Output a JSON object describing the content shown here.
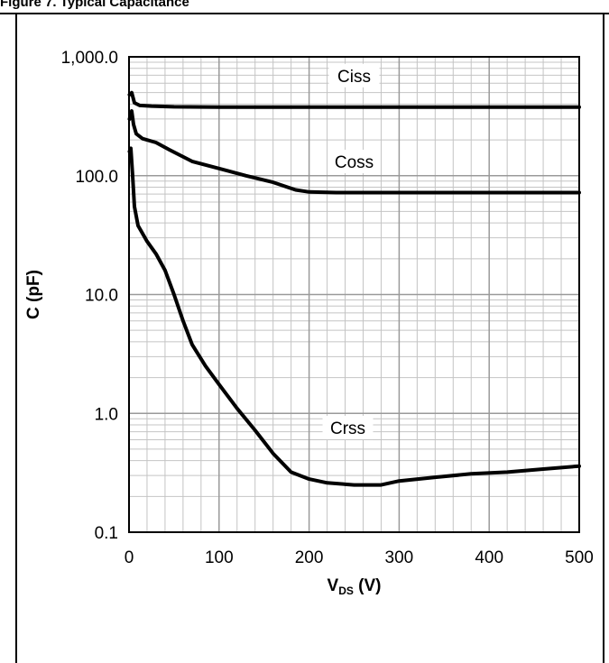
{
  "caption": "Figure 7. Typical Capacitance",
  "chart_data": {
    "type": "line",
    "xlabel": "V",
    "xlabel_sub": "DS",
    "xlabel_suffix": " (V)",
    "ylabel": "C (pF)",
    "xlim": [
      0,
      500
    ],
    "ylim": [
      0.1,
      1000
    ],
    "yscale": "log",
    "grid": true,
    "x_ticks": [
      "0",
      "100",
      "200",
      "300",
      "400",
      "500"
    ],
    "y_ticks": [
      "0.1",
      "1.0",
      "10.0",
      "100.0",
      "1,000.0"
    ],
    "series": [
      {
        "name": "Ciss",
        "label_at": [
          250,
          660
        ],
        "points": [
          [
            0.5,
            480
          ],
          [
            3,
            500
          ],
          [
            6,
            410
          ],
          [
            12,
            390
          ],
          [
            25,
            385
          ],
          [
            50,
            380
          ],
          [
            100,
            378
          ],
          [
            200,
            378
          ],
          [
            300,
            378
          ],
          [
            400,
            378
          ],
          [
            500,
            378
          ]
        ]
      },
      {
        "name": "Coss",
        "label_at": [
          250,
          125
        ],
        "points": [
          [
            0.5,
            300
          ],
          [
            3,
            350
          ],
          [
            5,
            270
          ],
          [
            8,
            225
          ],
          [
            15,
            205
          ],
          [
            30,
            190
          ],
          [
            45,
            165
          ],
          [
            70,
            132
          ],
          [
            100,
            115
          ],
          [
            130,
            100
          ],
          [
            160,
            88
          ],
          [
            185,
            76
          ],
          [
            200,
            73
          ],
          [
            230,
            72
          ],
          [
            300,
            72
          ],
          [
            400,
            72
          ],
          [
            500,
            72
          ]
        ]
      },
      {
        "name": "Crss",
        "label_at": [
          243,
          0.72
        ],
        "points": [
          [
            0.5,
            160
          ],
          [
            2,
            170
          ],
          [
            4,
            100
          ],
          [
            6,
            55
          ],
          [
            10,
            38
          ],
          [
            20,
            28
          ],
          [
            30,
            22
          ],
          [
            40,
            16
          ],
          [
            50,
            10
          ],
          [
            60,
            6
          ],
          [
            70,
            3.8
          ],
          [
            85,
            2.5
          ],
          [
            100,
            1.75
          ],
          [
            120,
            1.1
          ],
          [
            140,
            0.72
          ],
          [
            160,
            0.46
          ],
          [
            180,
            0.32
          ],
          [
            200,
            0.28
          ],
          [
            220,
            0.26
          ],
          [
            250,
            0.25
          ],
          [
            280,
            0.25
          ],
          [
            300,
            0.27
          ],
          [
            340,
            0.29
          ],
          [
            380,
            0.31
          ],
          [
            420,
            0.32
          ],
          [
            460,
            0.34
          ],
          [
            500,
            0.36
          ]
        ]
      }
    ]
  }
}
